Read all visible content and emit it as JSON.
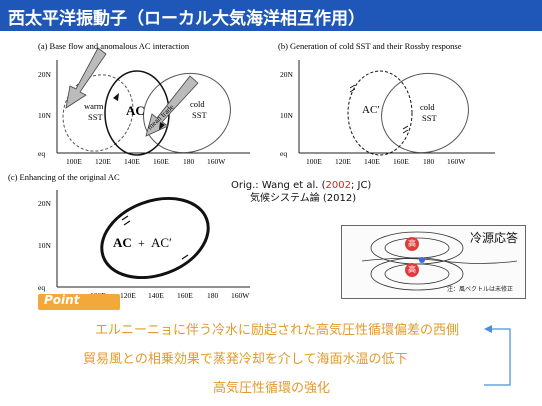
{
  "header": {
    "title": "西太平洋振動子（ローカル大気海洋相互作用）"
  },
  "colors": {
    "header_bg": "#1f57b8",
    "accent_orange": "#e39a2c",
    "citation_year_red": "#d62020"
  },
  "panel_a": {
    "title": "(a) Base flow and anomalous AC interaction",
    "y_ticks": [
      "20N",
      "10N",
      "eq"
    ],
    "x_ticks": [
      "100E",
      "120E",
      "140E",
      "160E",
      "180",
      "160W"
    ],
    "labels": {
      "warm": "warm",
      "warm_sst": "SST",
      "ac": "AC",
      "cold": "cold",
      "cold_sst": "SST",
      "mean_trade": "mean trade"
    }
  },
  "panel_b": {
    "title": "(b) Generation of cold SST and their Rossby response",
    "y_ticks": [
      "20N",
      "10N",
      "eq"
    ],
    "x_ticks": [
      "100E",
      "120E",
      "140E",
      "160E",
      "180",
      "160W"
    ],
    "labels": {
      "ac_prime": "AC′",
      "cold": "cold",
      "cold_sst": "SST"
    }
  },
  "panel_c": {
    "title": "(c) Enhancing of the original AC",
    "y_ticks": [
      "20N",
      "10N",
      "eq"
    ],
    "x_ticks": [
      "100E",
      "120E",
      "140E",
      "160E",
      "180",
      "160W"
    ],
    "labels": {
      "ac": "AC",
      "plus": "+",
      "ac_prime": "AC′"
    }
  },
  "citation": {
    "orig_prefix": "Orig.: Wang et al. (",
    "year": "2002",
    "orig_suffix": "; JC)",
    "book": "気候システム論 (2012)"
  },
  "inset": {
    "label": "冷源応答",
    "high_top": "高",
    "high_bottom": "高",
    "note": "注：風ベクトルは未修正"
  },
  "point": {
    "badge": "Point"
  },
  "notes": [
    "エルニーニョに伴う冷水に励起された高気圧性循環偏差の西側",
    "貿易風との相乗効果で蒸発冷却を介して海面水温の低下",
    "高気圧性循環の強化"
  ]
}
